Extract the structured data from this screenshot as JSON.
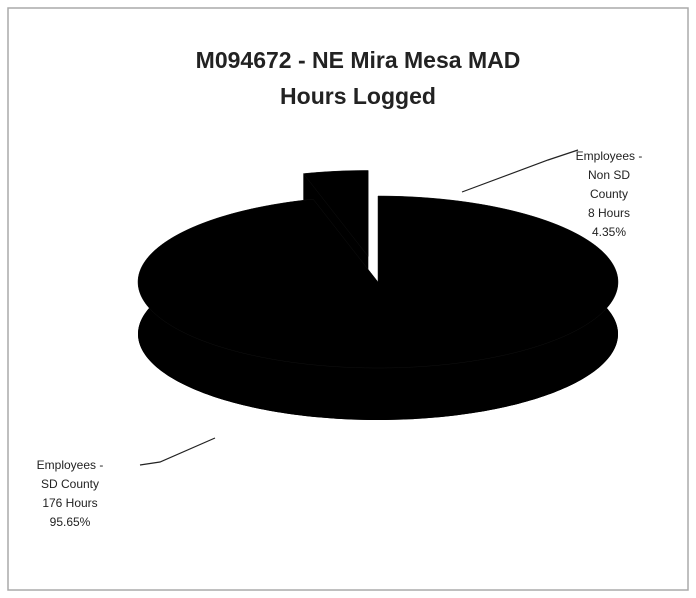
{
  "chart_data": {
    "type": "pie",
    "title": [
      "M094672 - NE Mira Mesa MAD",
      "Hours Logged"
    ],
    "categories": [
      "Employees - SD County",
      "Employees - Non SD County"
    ],
    "values": [
      95.65,
      4.35
    ],
    "value_labels": [
      "95.65%",
      "4.35%"
    ],
    "hours": [
      {
        "value": 176,
        "label": "176 Hours"
      },
      {
        "value": 8,
        "label": "8 Hours"
      }
    ],
    "color": "#000000"
  }
}
